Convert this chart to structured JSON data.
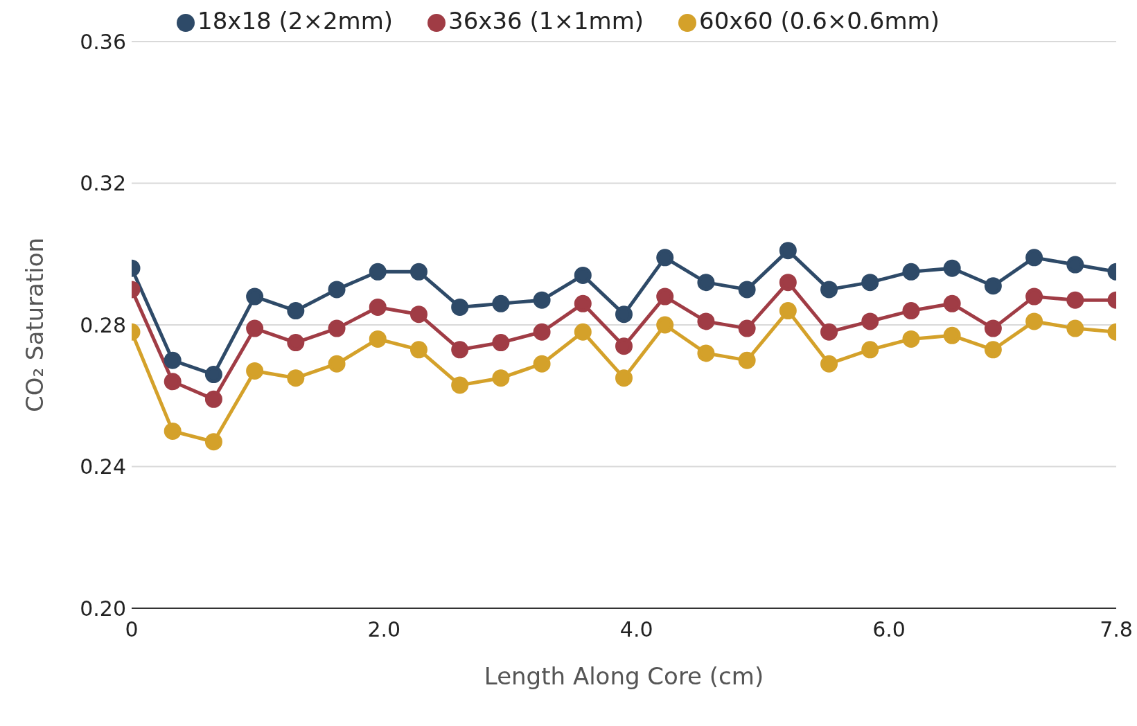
{
  "chart_data": {
    "type": "line",
    "xlabel": "Length Along Core (cm)",
    "ylabel": "CO₂ Saturation",
    "x": [
      0,
      0.325,
      0.65,
      0.975,
      1.3,
      1.625,
      1.95,
      2.275,
      2.6,
      2.925,
      3.25,
      3.575,
      3.9,
      4.225,
      4.55,
      4.875,
      5.2,
      5.525,
      5.85,
      6.175,
      6.5,
      6.825,
      7.15,
      7.475,
      7.8
    ],
    "series": [
      {
        "name": "18x18 (2×2mm)",
        "color": "#2e4a68",
        "values": [
          0.296,
          0.27,
          0.266,
          0.288,
          0.284,
          0.29,
          0.295,
          0.295,
          0.285,
          0.286,
          0.287,
          0.294,
          0.283,
          0.299,
          0.292,
          0.29,
          0.301,
          0.29,
          0.292,
          0.295,
          0.296,
          0.291,
          0.299,
          0.297,
          0.295
        ]
      },
      {
        "name": "36x36 (1×1mm)",
        "color": "#a03c45",
        "values": [
          0.29,
          0.264,
          0.259,
          0.279,
          0.275,
          0.279,
          0.285,
          0.283,
          0.273,
          0.275,
          0.278,
          0.286,
          0.274,
          0.288,
          0.281,
          0.279,
          0.292,
          0.278,
          0.281,
          0.284,
          0.286,
          0.279,
          0.288,
          0.287,
          0.287
        ]
      },
      {
        "name": "60x60 (0.6×0.6mm)",
        "color": "#d4a12a",
        "values": [
          0.278,
          0.25,
          0.247,
          0.267,
          0.265,
          0.269,
          0.276,
          0.273,
          0.263,
          0.265,
          0.269,
          0.278,
          0.265,
          0.28,
          0.272,
          0.27,
          0.284,
          0.269,
          0.273,
          0.276,
          0.277,
          0.273,
          0.281,
          0.279,
          0.278
        ]
      }
    ],
    "xlim": [
      0,
      7.8
    ],
    "xticks": [
      0,
      {
        "value": 2,
        "label": "2.0"
      },
      {
        "value": 4,
        "label": "4.0"
      },
      {
        "value": 6,
        "label": "6.0"
      },
      7.8
    ],
    "ylim": [
      0.2,
      0.36
    ],
    "yticks": [
      {
        "value": 0.2,
        "label": "0.20"
      },
      0.24,
      0.28,
      0.32,
      0.36
    ],
    "grid": "y",
    "legend": "top",
    "marker": "circle",
    "line_style": "solid"
  }
}
